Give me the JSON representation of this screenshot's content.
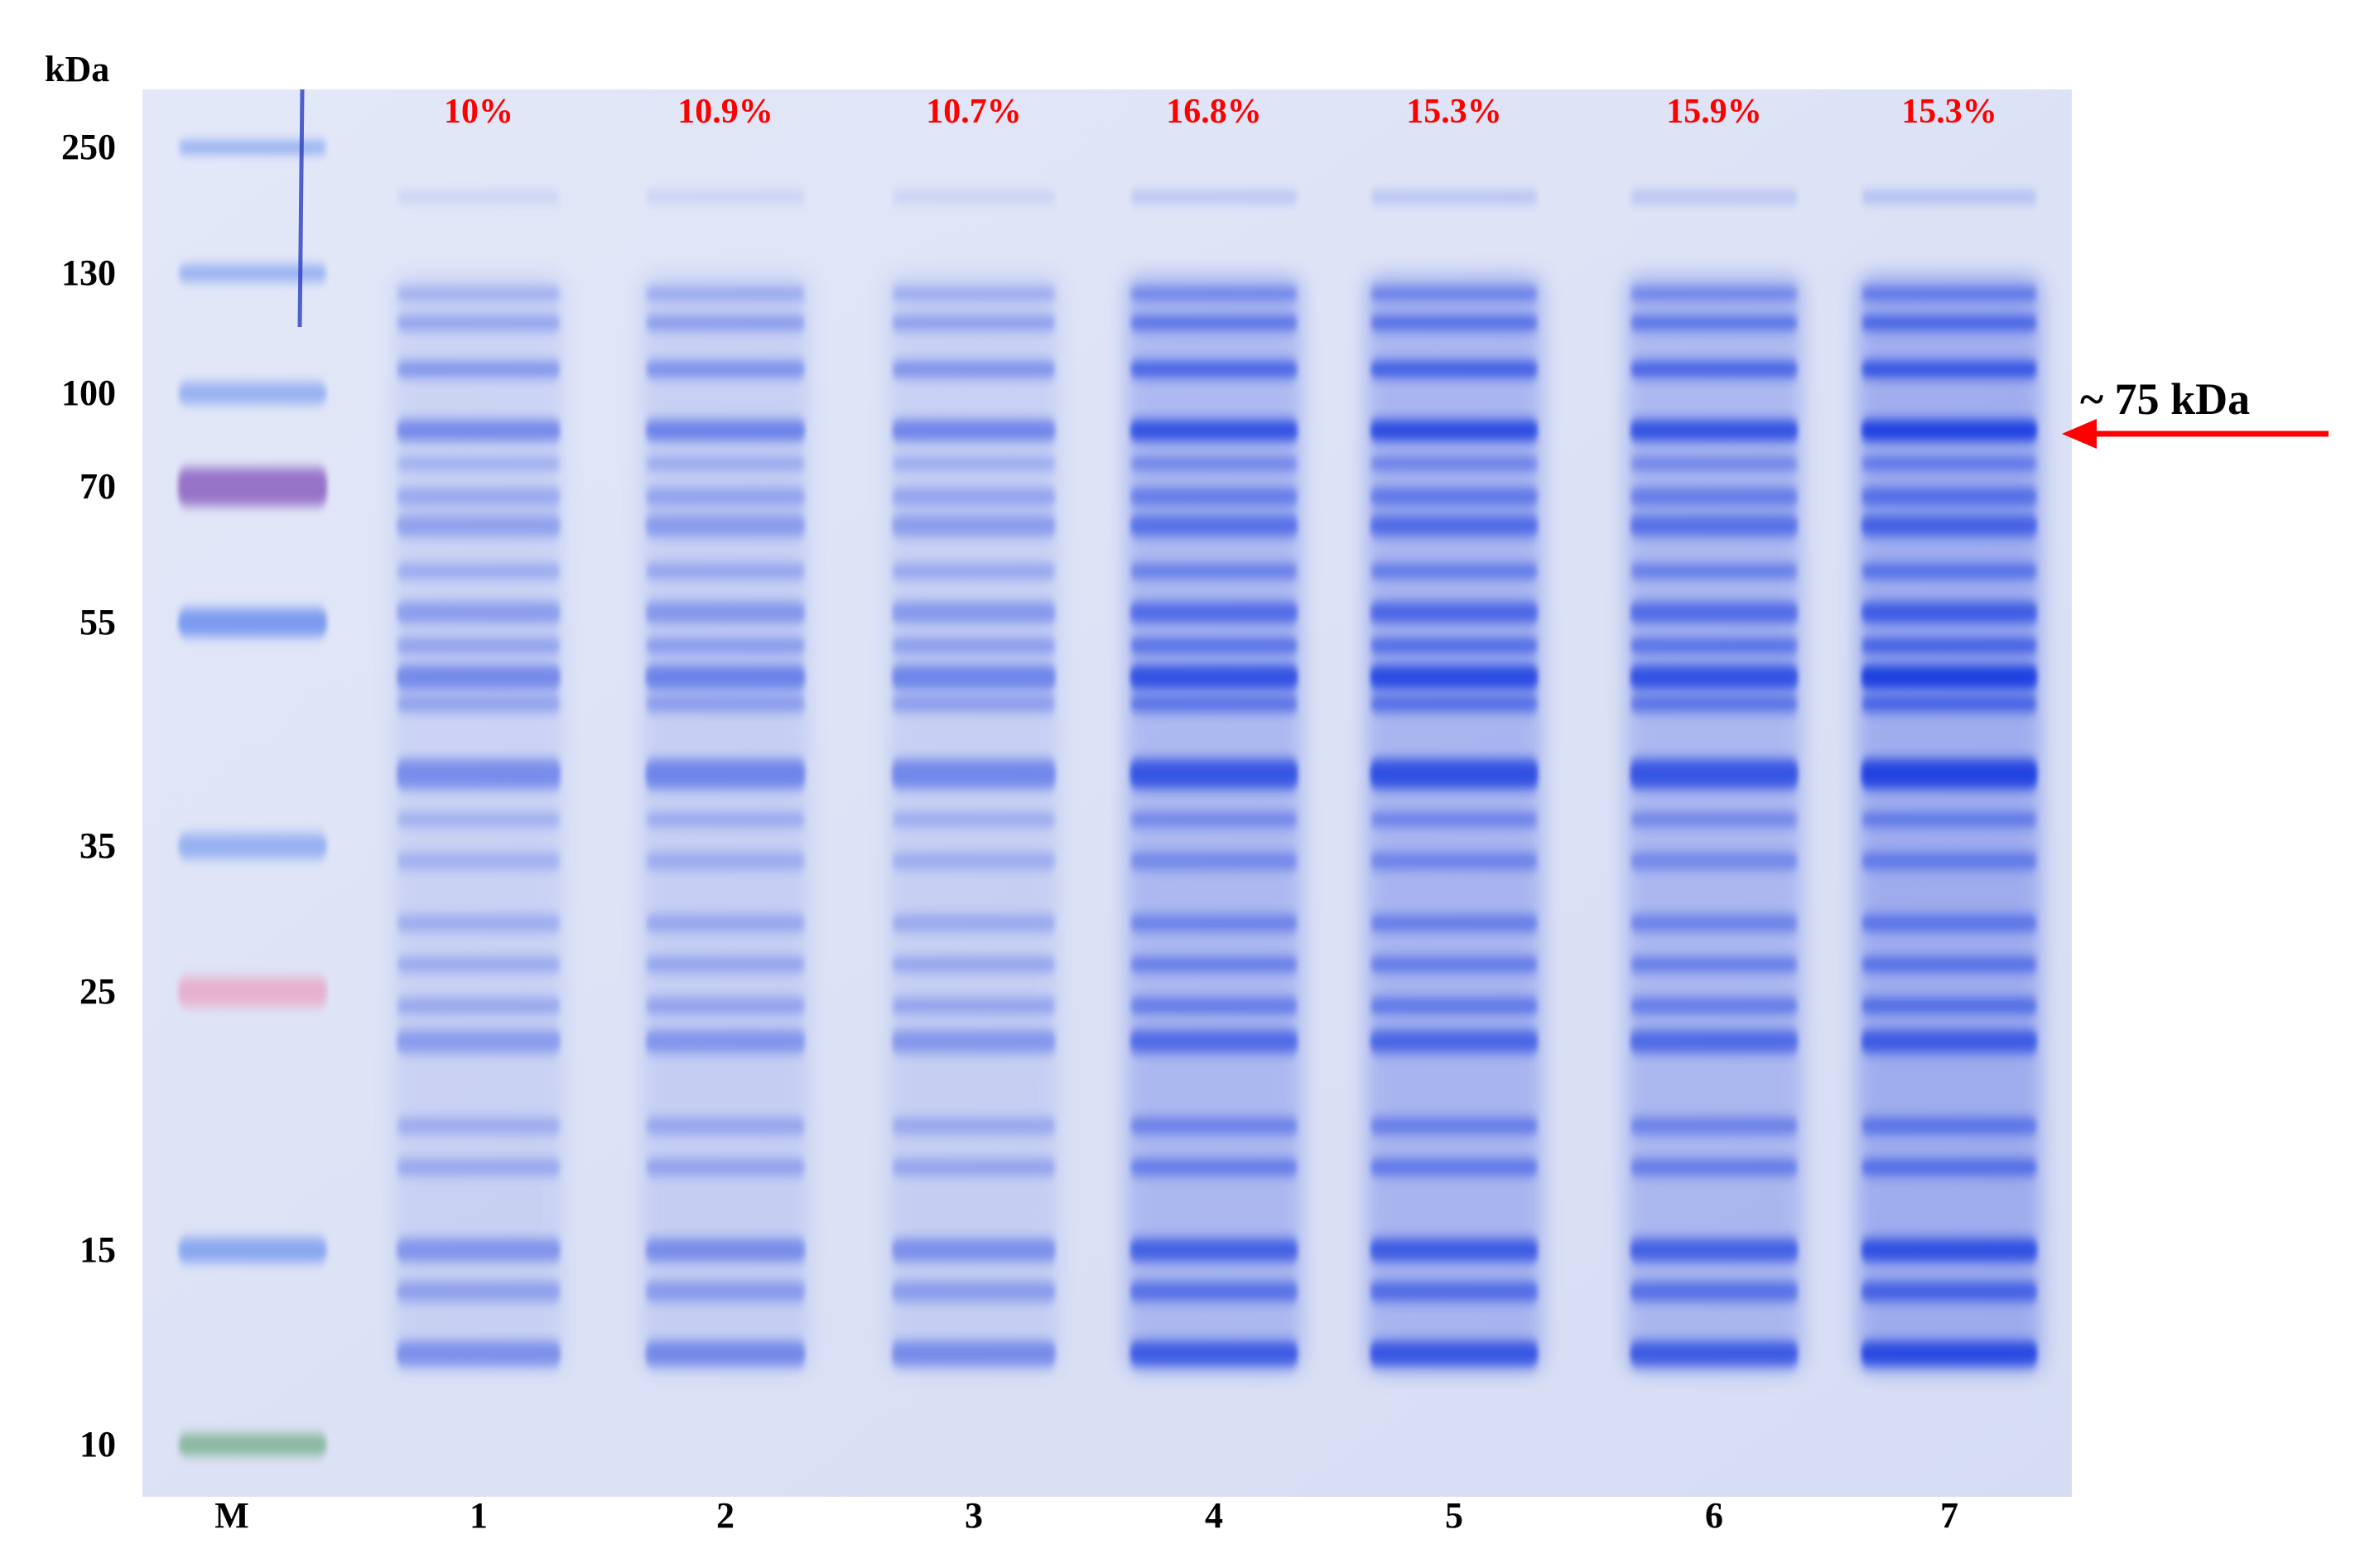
{
  "figure": {
    "mw_axis_unit": "kDa",
    "mw_ladder_labels": [
      "250",
      "130",
      "100",
      "70",
      "55",
      "35",
      "25",
      "15",
      "10"
    ],
    "lane_labels": [
      "M",
      "1",
      "2",
      "3",
      "4",
      "5",
      "6",
      "7"
    ],
    "lane_percentages": [
      "10%",
      "10.9%",
      "10.7%",
      "16.8%",
      "15.3%",
      "15.9%",
      "15.3%"
    ],
    "annotation_text": "~ 75 kDa",
    "colors": {
      "gel_background": "#dde3f6",
      "band_blue": "#1f3fe0",
      "percent_text": "#ff0000",
      "arrow": "#ff0000",
      "label_text": "#000000"
    },
    "lane_intensity": [
      0.55,
      0.6,
      0.58,
      0.95,
      1.0,
      0.95,
      1.12
    ],
    "arrow_icon": "left-arrow-icon"
  }
}
